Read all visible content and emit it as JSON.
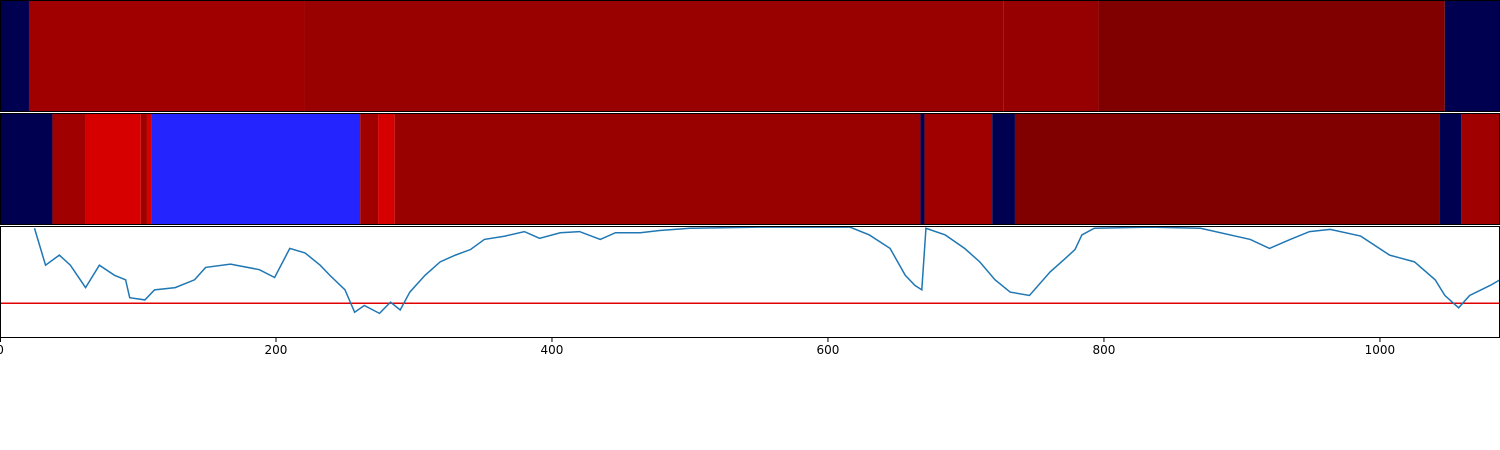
{
  "chart_data": [
    {
      "type": "heatmap",
      "xlim": [
        0,
        1087
      ],
      "segments": [
        {
          "start": 0,
          "end": 21,
          "color": "#000050"
        },
        {
          "start": 21,
          "end": 221,
          "color": "#a00000"
        },
        {
          "start": 221,
          "end": 727,
          "color": "#990000"
        },
        {
          "start": 727,
          "end": 796,
          "color": "#960000"
        },
        {
          "start": 796,
          "end": 1047,
          "color": "#800000"
        },
        {
          "start": 1047,
          "end": 1087,
          "color": "#000050"
        }
      ]
    },
    {
      "type": "heatmap",
      "xlim": [
        0,
        1087
      ],
      "segments": [
        {
          "start": 0,
          "end": 38,
          "color": "#000050"
        },
        {
          "start": 38,
          "end": 62,
          "color": "#a00000"
        },
        {
          "start": 62,
          "end": 102,
          "color": "#d60000"
        },
        {
          "start": 102,
          "end": 106.5,
          "color": "#a00000"
        },
        {
          "start": 106.5,
          "end": 109.5,
          "color": "#d60000"
        },
        {
          "start": 109.5,
          "end": 261,
          "color": "#2424ff"
        },
        {
          "start": 261,
          "end": 274,
          "color": "#a00000"
        },
        {
          "start": 274,
          "end": 286,
          "color": "#d60000"
        },
        {
          "start": 286,
          "end": 667,
          "color": "#990000"
        },
        {
          "start": 667,
          "end": 670,
          "color": "#000050"
        },
        {
          "start": 670,
          "end": 719,
          "color": "#a00000"
        },
        {
          "start": 719,
          "end": 735.5,
          "color": "#000050"
        },
        {
          "start": 735.5,
          "end": 1043,
          "color": "#800000"
        },
        {
          "start": 1043,
          "end": 1059,
          "color": "#000050"
        },
        {
          "start": 1059,
          "end": 1087,
          "color": "#a00000"
        }
      ]
    },
    {
      "type": "line",
      "xlim": [
        0,
        1087
      ],
      "ylim": [
        0,
        1
      ],
      "xticks": [
        0,
        200,
        400,
        600,
        800,
        1000
      ],
      "color": "#1f77b4",
      "hline": {
        "value": 0.31,
        "color": "#e00000"
      },
      "x": [
        25,
        33,
        43,
        51,
        62,
        72,
        83,
        91,
        94,
        105,
        112,
        127,
        141,
        149,
        167,
        188,
        199,
        210,
        221,
        232,
        239,
        250,
        257,
        264,
        275,
        283,
        290,
        297,
        308,
        319,
        330,
        341,
        351,
        366,
        380,
        391,
        406,
        420,
        435,
        446,
        464,
        478,
        500,
        551,
        616,
        630,
        645,
        656,
        663,
        668,
        671,
        685,
        699,
        710,
        721,
        732,
        746,
        761,
        772,
        779,
        784,
        793,
        833,
        870,
        906,
        920,
        935,
        949,
        964,
        986,
        1007,
        1025,
        1040,
        1047,
        1057,
        1065,
        1080,
        1087
      ],
      "values": [
        0.98,
        0.65,
        0.74,
        0.65,
        0.45,
        0.65,
        0.56,
        0.52,
        0.36,
        0.34,
        0.43,
        0.45,
        0.52,
        0.63,
        0.66,
        0.61,
        0.54,
        0.8,
        0.76,
        0.65,
        0.56,
        0.43,
        0.23,
        0.29,
        0.22,
        0.32,
        0.25,
        0.41,
        0.56,
        0.68,
        0.74,
        0.79,
        0.88,
        0.91,
        0.95,
        0.89,
        0.94,
        0.95,
        0.88,
        0.94,
        0.94,
        0.96,
        0.98,
        0.99,
        0.99,
        0.92,
        0.8,
        0.56,
        0.47,
        0.43,
        0.98,
        0.92,
        0.8,
        0.68,
        0.52,
        0.41,
        0.38,
        0.59,
        0.71,
        0.79,
        0.92,
        0.98,
        0.99,
        0.98,
        0.88,
        0.8,
        0.88,
        0.95,
        0.97,
        0.91,
        0.74,
        0.68,
        0.52,
        0.38,
        0.27,
        0.38,
        0.47,
        0.52
      ]
    }
  ]
}
